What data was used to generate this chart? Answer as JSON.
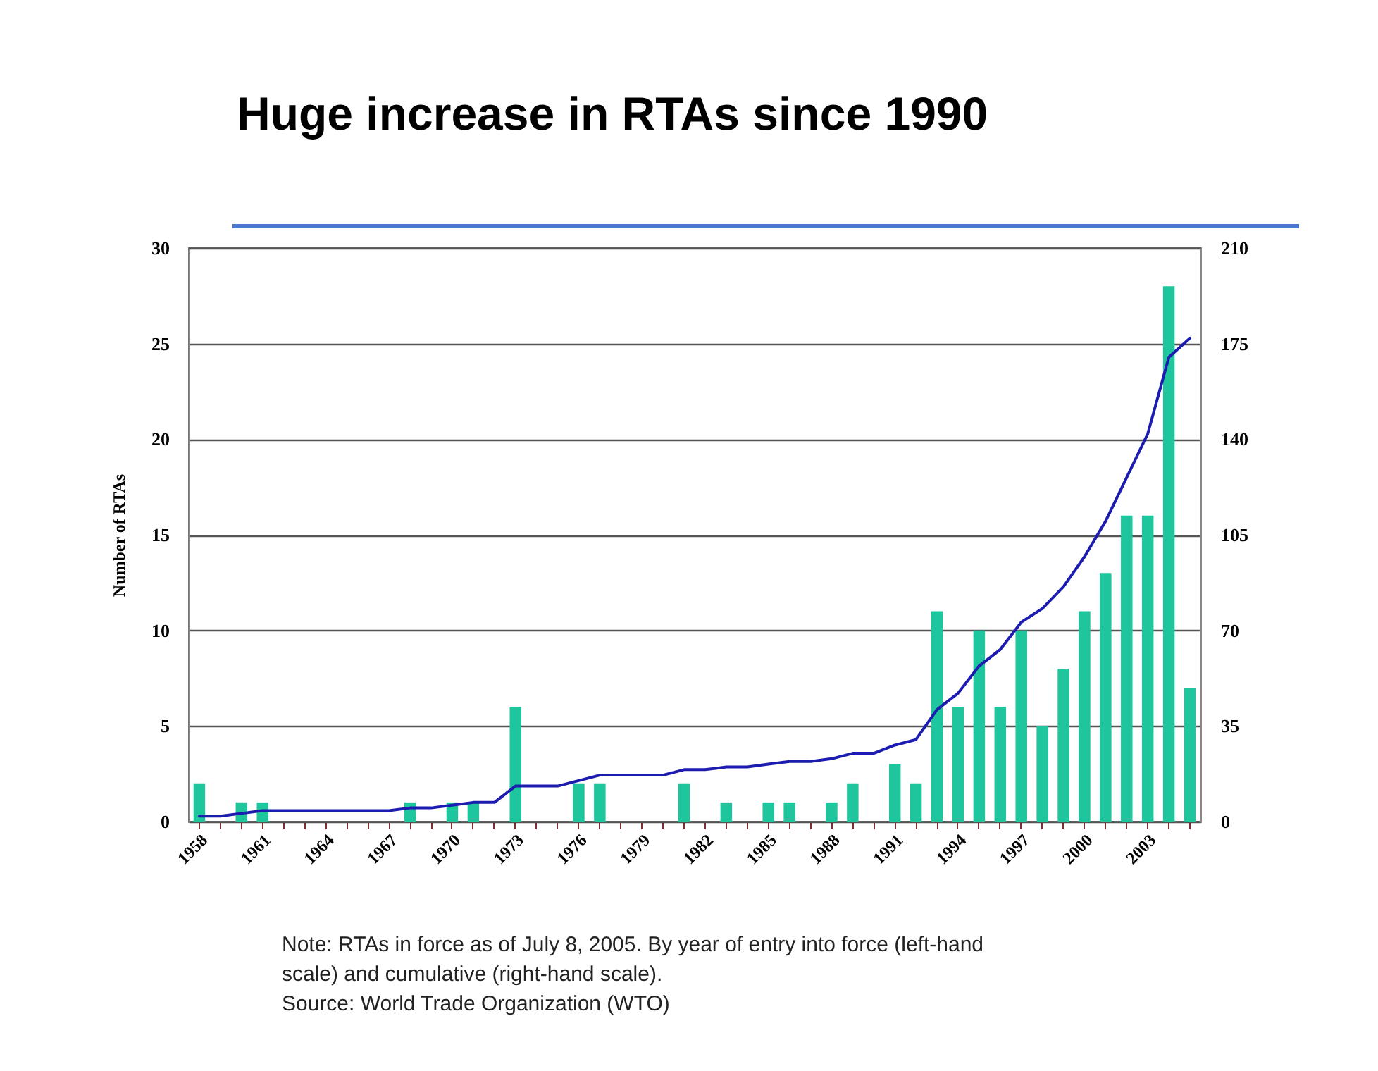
{
  "chart_data": {
    "type": "bar",
    "title": "Huge increase in RTAs since 1990",
    "categories": [
      "1958",
      null,
      null,
      "1961",
      null,
      null,
      "1964",
      null,
      null,
      "1967",
      null,
      null,
      "1970",
      null,
      null,
      "1973",
      null,
      null,
      "1976",
      null,
      null,
      "1979",
      null,
      null,
      "1982",
      null,
      null,
      "1985",
      null,
      null,
      "1988",
      null,
      null,
      "1991",
      null,
      null,
      "1994",
      null,
      null,
      "1997",
      null,
      null,
      "2000",
      null,
      null,
      "2003",
      null,
      null
    ],
    "series": [
      {
        "color": "#1fc59c",
        "values": [
          2,
          0,
          1,
          1,
          0,
          0,
          0,
          0,
          0,
          0,
          1,
          0,
          1,
          1,
          0,
          6,
          0,
          0,
          2,
          2,
          0,
          0,
          0,
          2,
          0,
          1,
          0,
          1,
          1,
          0,
          1,
          2,
          0,
          3,
          2,
          11,
          6,
          10,
          6,
          10,
          5,
          8,
          11,
          13,
          16,
          16,
          28,
          7
        ]
      },
      {
        "type": "line",
        "axis": "y2",
        "color": "#1c1cb0",
        "values": [
          2,
          2,
          3,
          4,
          4,
          4,
          4,
          4,
          4,
          4,
          5,
          5,
          6,
          7,
          7,
          13,
          13,
          13,
          15,
          17,
          17,
          17,
          17,
          19,
          19,
          20,
          20,
          21,
          22,
          22,
          23,
          25,
          25,
          28,
          30,
          41,
          47,
          57,
          63,
          73,
          78,
          86,
          97,
          110,
          126,
          142,
          170,
          177
        ]
      }
    ],
    "ylabel": "Number of RTAs",
    "ylim": [
      0,
      30
    ],
    "yticks": [
      0,
      5,
      10,
      15,
      20,
      25,
      30
    ],
    "y2lim": [
      0,
      210
    ],
    "y2ticks": [
      0,
      35,
      70,
      105,
      140,
      175,
      210
    ],
    "grid": "y",
    "annotations": [
      "Note: RTAs in force as of July 8, 2005. By year of entry into force (left-hand scale) and cumulative (right-hand scale).",
      "Source: World Trade Organization (WTO)"
    ]
  }
}
